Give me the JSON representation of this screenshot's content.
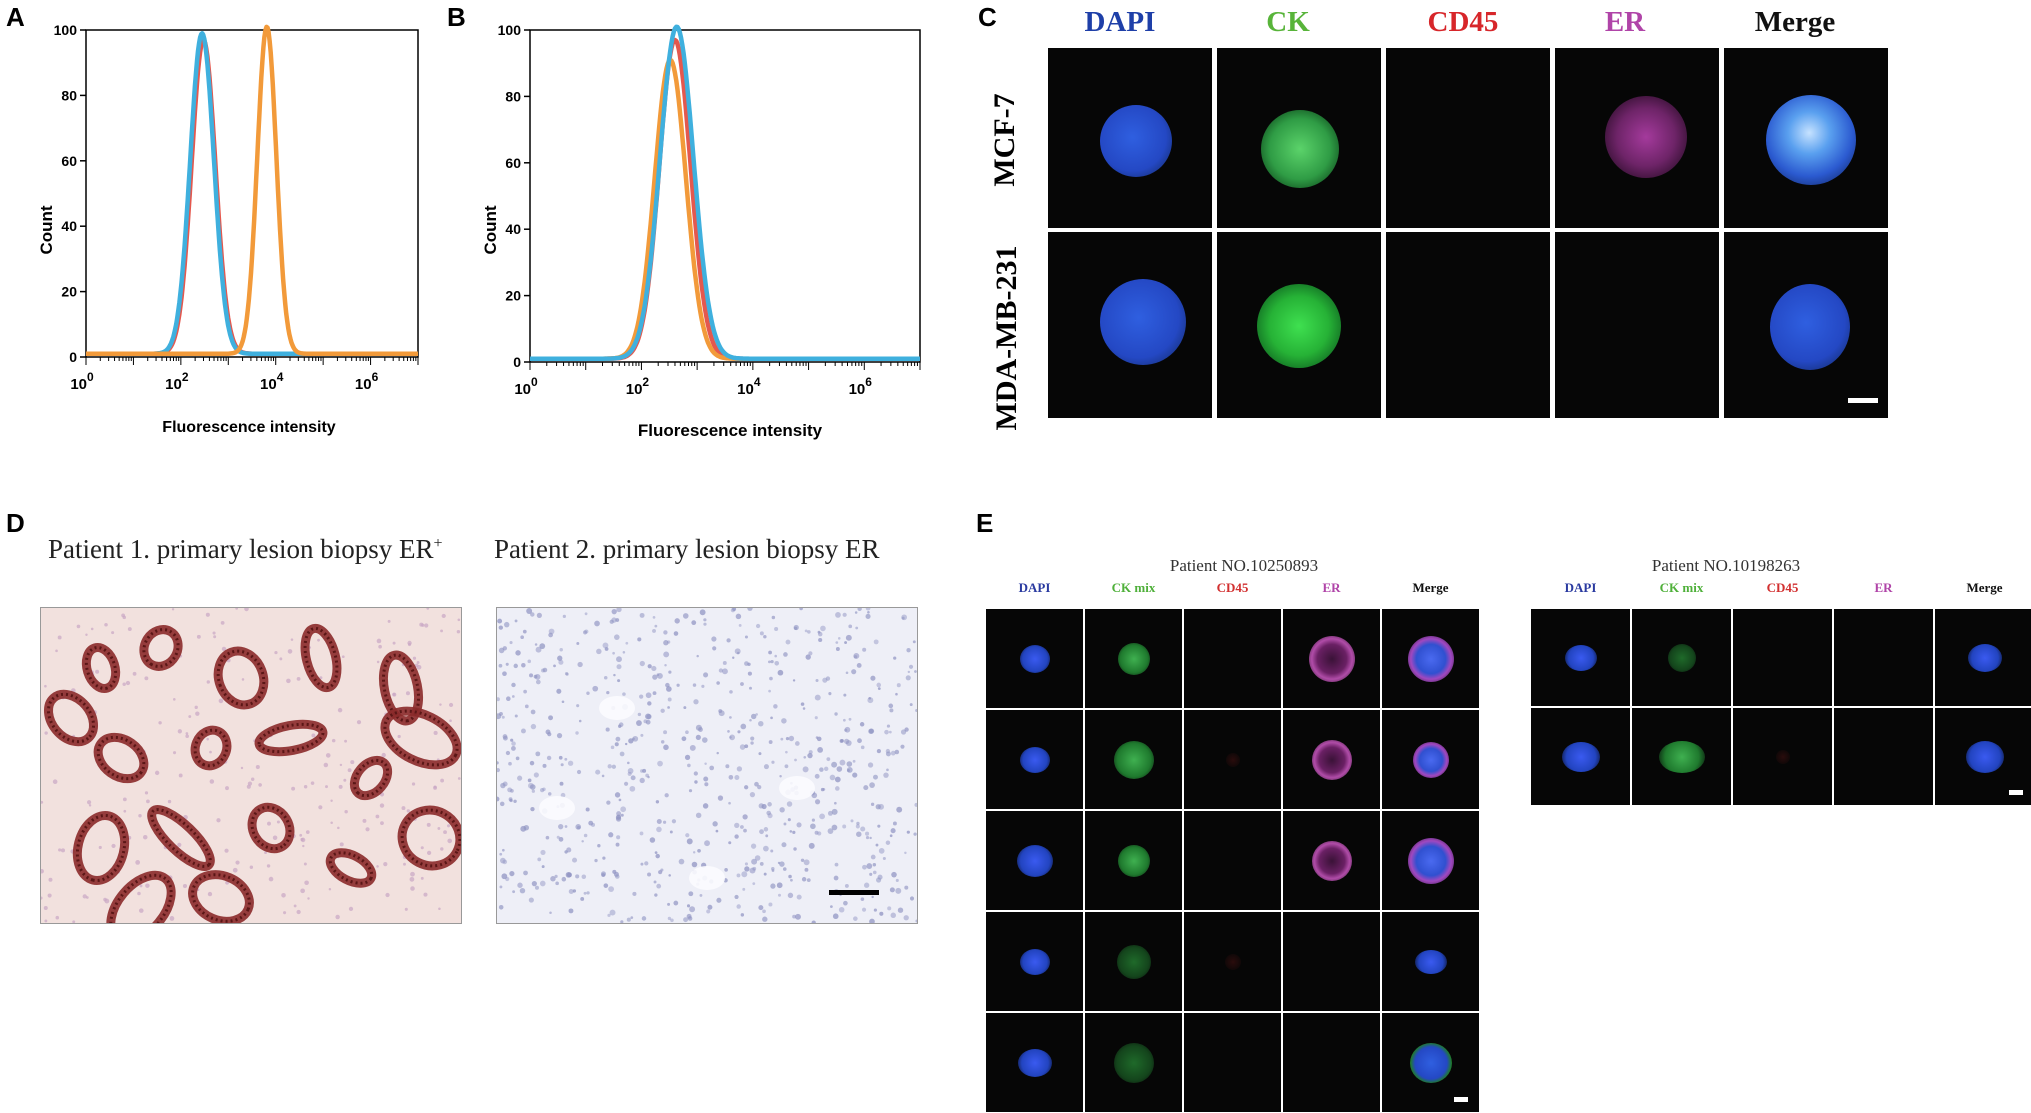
{
  "panels": {
    "A": {
      "label": "A",
      "chart_data": {
        "type": "line",
        "xlabel": "Fluorescence intensity",
        "ylabel": "Count",
        "x_scale": "log",
        "xlim": [
          1,
          10000000
        ],
        "ylim": [
          0,
          100
        ],
        "xtick_exponents": [
          "0",
          "2",
          "4",
          "6"
        ],
        "yticks": [
          "0",
          "20",
          "40",
          "60",
          "80",
          "100"
        ],
        "series": [
          {
            "color": "#e4584e",
            "peak_x": 300,
            "peak_y": 96,
            "width_decades": 0.25
          },
          {
            "color": "#3fb0de",
            "peak_x": 280,
            "peak_y": 98,
            "width_decades": 0.25
          },
          {
            "color": "#f29a3a",
            "peak_x": 6500,
            "peak_y": 100,
            "width_decades": 0.2
          }
        ]
      }
    },
    "B": {
      "label": "B",
      "chart_data": {
        "type": "line",
        "xlabel": "Fluorescence intensity",
        "ylabel": "Count",
        "x_scale": "log",
        "xlim": [
          1,
          10000000
        ],
        "ylim": [
          0,
          100
        ],
        "xtick_exponents": [
          "0",
          "2",
          "4",
          "6"
        ],
        "yticks": [
          "0",
          "20",
          "40",
          "60",
          "80",
          "100"
        ],
        "series": [
          {
            "color": "#e4584e",
            "peak_x": 400,
            "peak_y": 96,
            "width_decades": 0.28
          },
          {
            "color": "#f29a3a",
            "peak_x": 330,
            "peak_y": 90,
            "width_decades": 0.28
          },
          {
            "color": "#3fb0de",
            "peak_x": 430,
            "peak_y": 100,
            "width_decades": 0.3
          }
        ]
      }
    },
    "C": {
      "label": "C",
      "channels": [
        {
          "name": "DAPI",
          "color": "#1e3fa8"
        },
        {
          "name": "CK",
          "color": "#58b43a"
        },
        {
          "name": "CD45",
          "color": "#d7262a"
        },
        {
          "name": "ER",
          "color": "#b044a8"
        },
        {
          "name": "Merge",
          "color": "#111111"
        }
      ],
      "rows": [
        "MCF-7",
        "MDA-MB-231"
      ]
    },
    "D": {
      "label": "D",
      "caption_left": "Patient 1. primary lesion biopsy ER",
      "caption_left_sup": "+",
      "caption_right": "Patient 2. primary lesion biopsy ER"
    },
    "E": {
      "label": "E",
      "patient1": {
        "title": "Patient NO.10250893",
        "channels": [
          "DAPI",
          "CK mix",
          "CD45",
          "ER",
          "Merge"
        ]
      },
      "patient2": {
        "title": "Patient NO.10198263",
        "channels": [
          "DAPI",
          "CK mix",
          "CD45",
          "ER",
          "Merge"
        ]
      },
      "channel_colors": [
        "#2a3aa0",
        "#4fb03a",
        "#d23030",
        "#b044a8",
        "#111111"
      ]
    }
  }
}
